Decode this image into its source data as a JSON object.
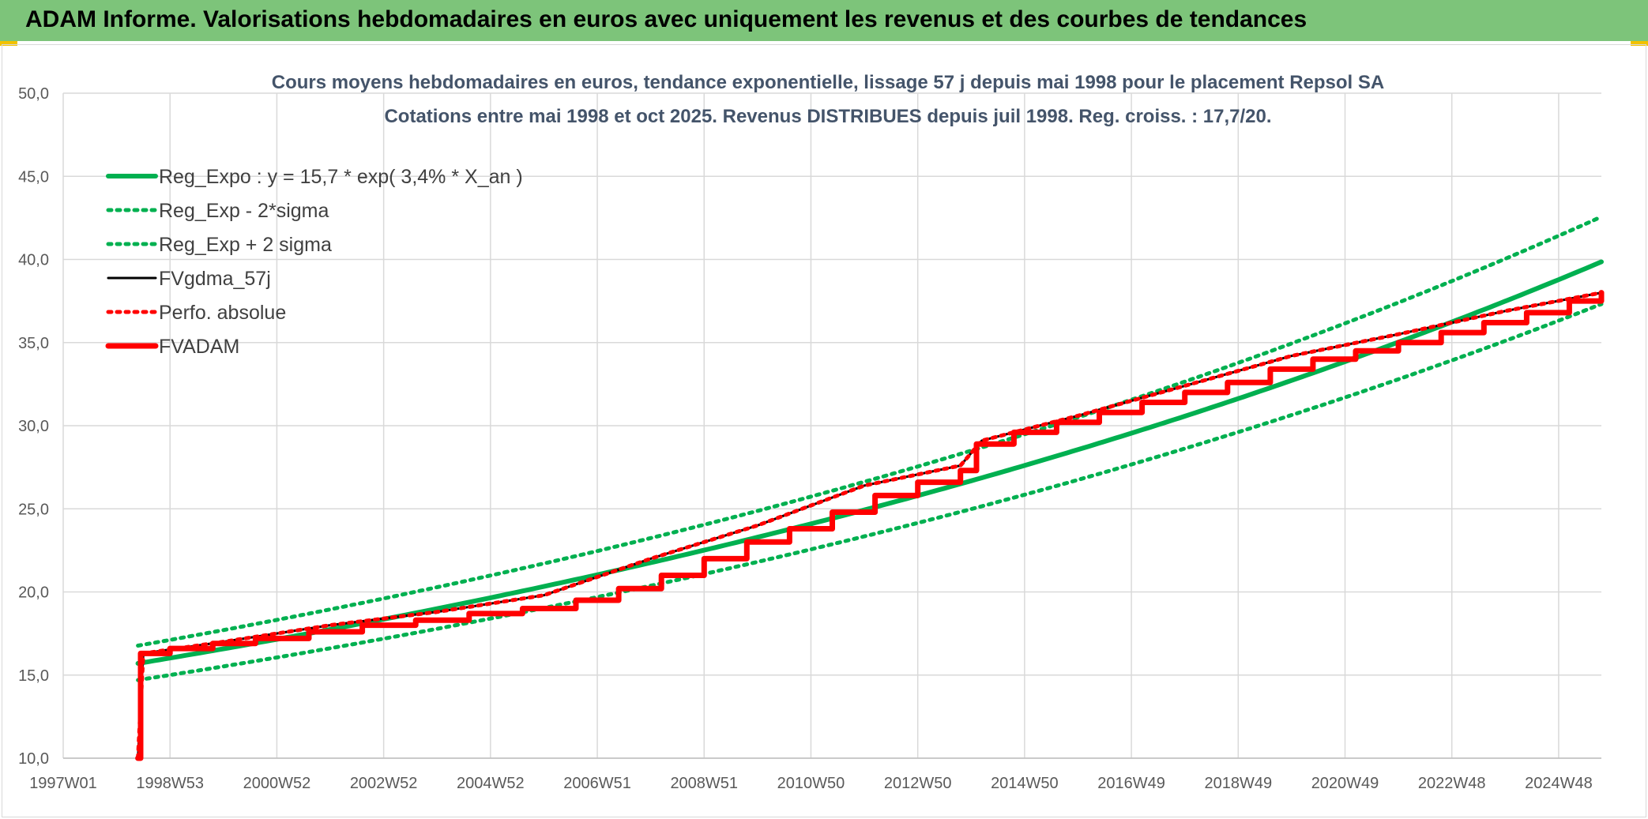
{
  "banner": {
    "title": "ADAM Informe. Valorisations hebdomadaires en euros avec uniquement les revenus et des courbes de tendances",
    "background_color": "#7dc47a",
    "corner_color": "#f2c200"
  },
  "chart_data": {
    "type": "line",
    "title": "Cours moyens hebdomadaires en euros, tendance exponentielle, lissage 57 j depuis mai 1998 pour le placement Repsol SA",
    "subtitle": "Cotations entre mai 1998 et oct 2025. Revenus DISTRIBUES depuis juil 1998. Reg. croiss. : 17,7/20.",
    "xlabel": "",
    "ylabel": "",
    "x_tick_labels": [
      "1997W01",
      "1998W53",
      "2000W52",
      "2002W52",
      "2004W52",
      "2006W51",
      "2008W51",
      "2010W50",
      "2012W50",
      "2014W50",
      "2016W49",
      "2018W49",
      "2020W49",
      "2022W48",
      "2024W48"
    ],
    "x_tick_years": [
      1997.0,
      1999.0,
      2001.0,
      2003.0,
      2005.0,
      2007.0,
      2009.0,
      2011.0,
      2013.0,
      2015.0,
      2017.0,
      2019.0,
      2021.0,
      2023.0,
      2025.0
    ],
    "xlim": [
      1997.0,
      2025.8
    ],
    "ylim": [
      10,
      50
    ],
    "y_ticks": [
      10,
      15,
      20,
      25,
      30,
      35,
      40,
      45,
      50
    ],
    "y_tick_labels": [
      "10,0",
      "15,0",
      "20,0",
      "25,0",
      "30,0",
      "35,0",
      "40,0",
      "45,0",
      "50,0"
    ],
    "grid": true,
    "legend_position": "top-left",
    "regression": {
      "a": 15.7,
      "rate": 0.034,
      "start": 1998.4,
      "end": 2025.8,
      "band_sigma2": 1.068
    },
    "series": [
      {
        "name": "Reg_Expo : y = 15,7 * exp( 3,4% *  X_an )",
        "color": "#00b050",
        "style": "solid-thick",
        "x": [
          1998.4,
          2000.0,
          2002.0,
          2004.0,
          2006.0,
          2008.0,
          2010.0,
          2012.0,
          2014.0,
          2016.0,
          2018.0,
          2020.0,
          2022.0,
          2024.0,
          2025.8
        ],
        "values": [
          15.7,
          16.6,
          17.8,
          19.1,
          20.5,
          22.0,
          23.6,
          25.3,
          27.1,
          29.1,
          31.2,
          33.4,
          35.9,
          38.5,
          40.9
        ]
      },
      {
        "name": "Reg_Exp - 2*sigma",
        "color": "#00b050",
        "style": "dotted",
        "x": [
          1998.4,
          2000.0,
          2002.0,
          2004.0,
          2006.0,
          2008.0,
          2010.0,
          2012.0,
          2014.0,
          2016.0,
          2018.0,
          2020.0,
          2022.0,
          2024.0,
          2025.8
        ],
        "values": [
          14.7,
          15.5,
          16.7,
          17.9,
          19.2,
          20.6,
          22.1,
          23.7,
          25.4,
          27.2,
          29.2,
          31.3,
          33.6,
          36.0,
          38.3
        ]
      },
      {
        "name": "Reg_Exp + 2 sigma",
        "color": "#00b050",
        "style": "dotted",
        "x": [
          1998.4,
          2000.0,
          2002.0,
          2004.0,
          2006.0,
          2008.0,
          2010.0,
          2012.0,
          2014.0,
          2016.0,
          2018.0,
          2020.0,
          2022.0,
          2024.0,
          2025.8
        ],
        "values": [
          16.8,
          17.7,
          19.0,
          20.4,
          21.9,
          23.5,
          25.2,
          27.0,
          29.0,
          31.1,
          33.3,
          35.7,
          38.3,
          41.1,
          43.7
        ]
      },
      {
        "name": "FVgdma_57j",
        "color": "#000000",
        "style": "solid",
        "x": [
          1998.4,
          1998.5,
          2000.0,
          2002.0,
          2004.0,
          2006.0,
          2008.0,
          2010.0,
          2012.0,
          2013.8,
          2014.2,
          2016.0,
          2018.0,
          2020.0,
          2022.0,
          2024.0,
          2025.8
        ],
        "values": [
          10.0,
          16.3,
          17.0,
          18.0,
          18.8,
          19.8,
          22.0,
          24.0,
          26.4,
          27.6,
          29.1,
          30.6,
          32.4,
          34.2,
          35.5,
          36.9,
          38.0
        ]
      },
      {
        "name": "Perfo. absolue",
        "color": "#ff0000",
        "style": "dotted",
        "x": [
          1998.4,
          1998.5,
          2000.0,
          2002.0,
          2004.0,
          2006.0,
          2008.0,
          2010.0,
          2012.0,
          2013.8,
          2014.2,
          2016.0,
          2018.0,
          2020.0,
          2022.0,
          2024.0,
          2025.8
        ],
        "values": [
          10.0,
          16.3,
          17.0,
          18.0,
          18.8,
          19.8,
          22.0,
          24.0,
          26.4,
          27.6,
          29.1,
          30.6,
          32.4,
          34.2,
          35.5,
          36.9,
          38.0
        ]
      },
      {
        "name": "FVADAM",
        "color": "#ff0000",
        "style": "solid-thick",
        "x": [
          1998.4,
          1998.45,
          1999.0,
          1999.8,
          2000.6,
          2001.6,
          2002.6,
          2003.6,
          2004.6,
          2005.6,
          2006.6,
          2007.4,
          2008.2,
          2009.0,
          2009.8,
          2010.6,
          2011.4,
          2012.2,
          2013.0,
          2013.8,
          2014.1,
          2014.8,
          2015.6,
          2016.4,
          2017.2,
          2018.0,
          2018.8,
          2019.6,
          2020.4,
          2021.2,
          2022.0,
          2022.8,
          2023.6,
          2024.4,
          2025.2,
          2025.8
        ],
        "values": [
          10.0,
          16.3,
          16.6,
          16.9,
          17.2,
          17.6,
          18.0,
          18.3,
          18.7,
          19.0,
          19.5,
          20.2,
          21.0,
          22.0,
          23.0,
          23.8,
          24.8,
          25.8,
          26.6,
          27.3,
          28.9,
          29.6,
          30.2,
          30.8,
          31.4,
          32.0,
          32.6,
          33.4,
          34.0,
          34.5,
          35.0,
          35.6,
          36.2,
          36.8,
          37.5,
          38.0
        ]
      }
    ]
  }
}
